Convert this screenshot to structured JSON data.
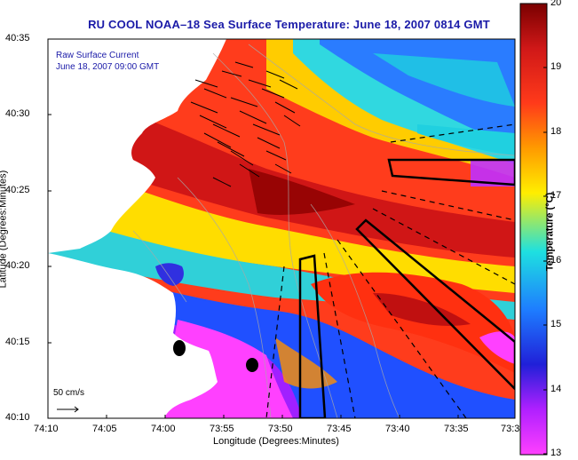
{
  "title": "RU COOL  NOAA–18  Sea Surface Temperature:  June 18, 2007 0814 GMT",
  "legend": {
    "title": "Raw Surface Current",
    "time": "June 18, 2007 09:00 GMT",
    "scale_label": "50 cm/s"
  },
  "axes": {
    "xlabel": "Longitude (Degrees:Minutes)",
    "ylabel": "Latitude (Degrees:Minutes)",
    "xticks": [
      "74:10",
      "74:05",
      "74:00",
      "73:55",
      "73:50",
      "73:45",
      "73:40",
      "73:35",
      "73:3"
    ],
    "yticks": [
      "40:35",
      "40:30",
      "40:25",
      "40:20",
      "40:15",
      "40:10"
    ]
  },
  "colorbar": {
    "label": "Temperature (°C)",
    "ticks": [
      "20",
      "19",
      "18",
      "17",
      "16",
      "15",
      "14",
      "13"
    ],
    "min": 13,
    "max": 20
  },
  "colors": {
    "title": "#1a1aa8",
    "land": "#ffffff"
  }
}
